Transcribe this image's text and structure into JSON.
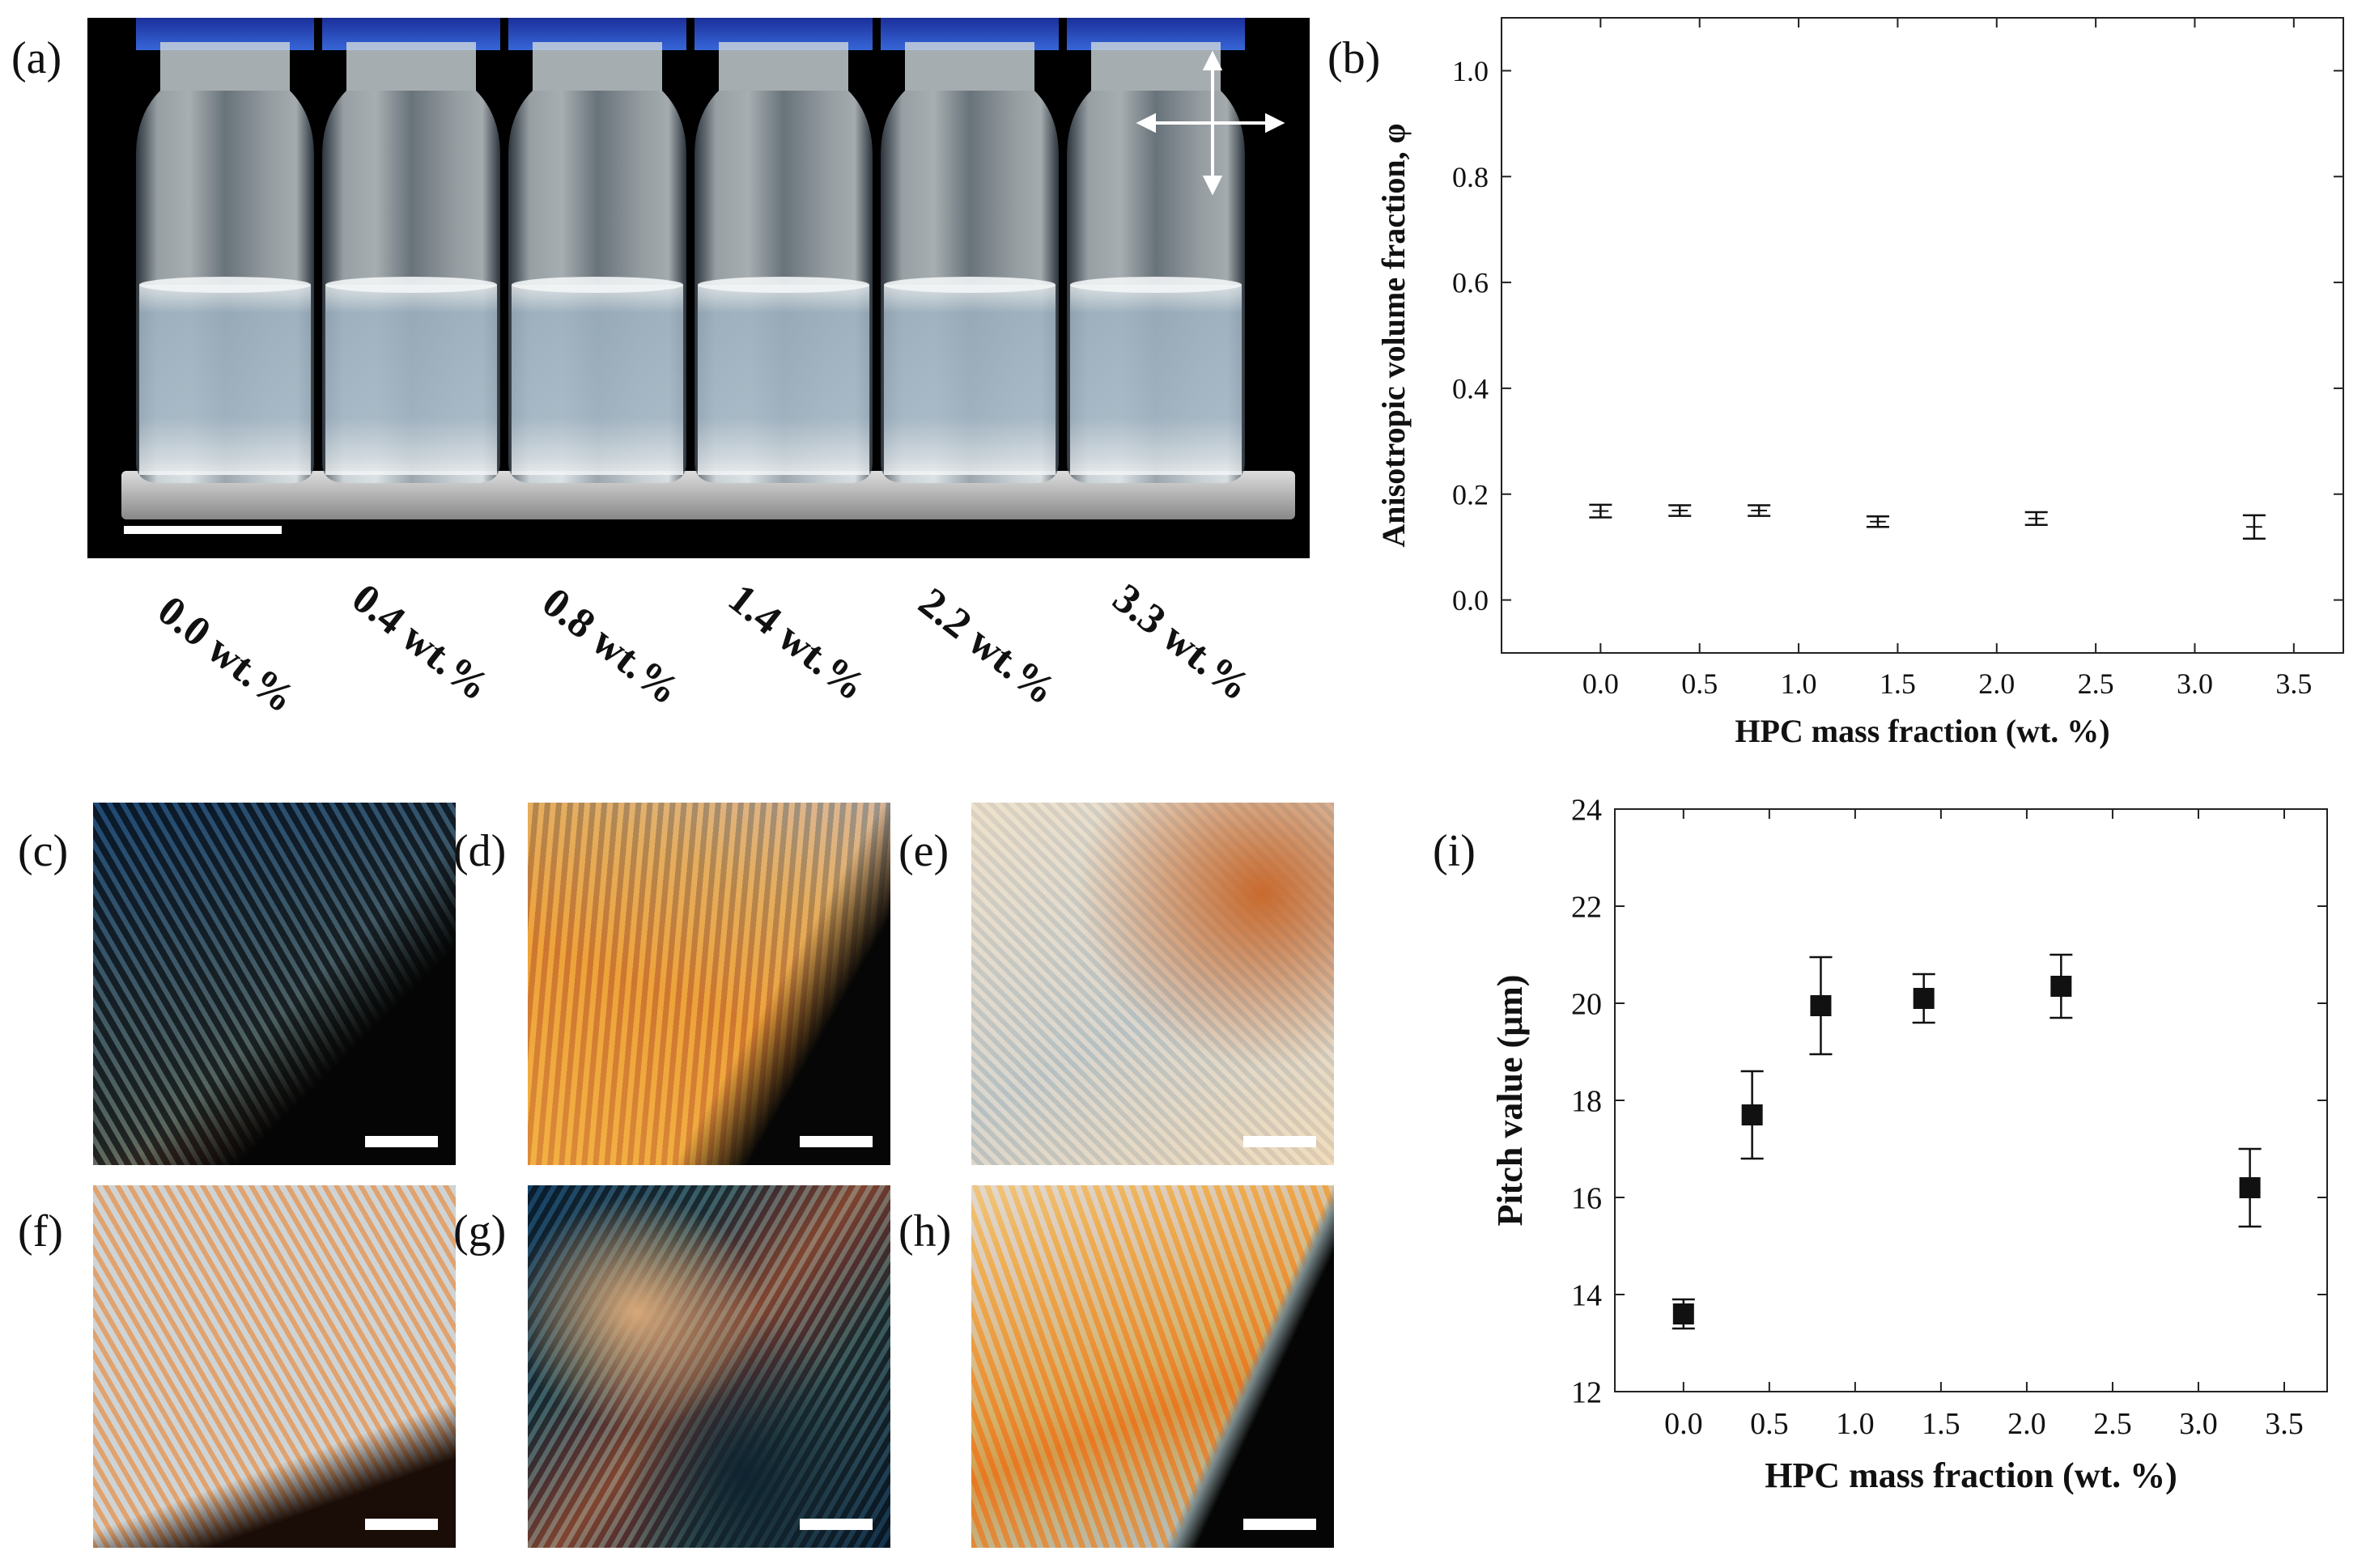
{
  "figure": {
    "panel_letters": [
      "(a)",
      "(b)",
      "(c)",
      "(d)",
      "(e)",
      "(f)",
      "(g)",
      "(h)",
      "(i)"
    ],
    "vial_labels": [
      "0.0 wt.%",
      "0.4 wt.%",
      "0.8 wt.%",
      "1.4 wt.%",
      "2.2 wt.%",
      "3.3 wt.%"
    ]
  },
  "chart_data": [
    {
      "panel": "(b)",
      "type": "scatter",
      "xlabel": "HPC mass fraction (wt. %)",
      "ylabel": "Anisotropic volume fraction, φ",
      "xlim": [
        -0.5,
        3.75
      ],
      "ylim": [
        -0.1,
        1.1
      ],
      "xticks": [
        "0.0",
        "0.5",
        "1.0",
        "1.5",
        "2.0",
        "2.5",
        "3.0",
        "3.5"
      ],
      "yticks": [
        "0.0",
        "0.2",
        "0.4",
        "0.6",
        "0.8",
        "1.0"
      ],
      "x": [
        0.0,
        0.4,
        0.8,
        1.4,
        2.2,
        3.3
      ],
      "y": [
        0.168,
        0.169,
        0.169,
        0.148,
        0.154,
        0.138
      ],
      "error": [
        0.012,
        0.01,
        0.01,
        0.01,
        0.012,
        0.022
      ]
    },
    {
      "panel": "(i)",
      "type": "scatter",
      "xlabel": "HPC mass fraction (wt. %)",
      "ylabel": "Pitch value (μm)",
      "xlim": [
        -0.4,
        3.75
      ],
      "ylim": [
        12,
        24
      ],
      "xticks": [
        "0.0",
        "0.5",
        "1.0",
        "1.5",
        "2.0",
        "2.5",
        "3.0",
        "3.5"
      ],
      "yticks": [
        "12",
        "14",
        "16",
        "18",
        "20",
        "22",
        "24"
      ],
      "x": [
        0.0,
        0.4,
        0.8,
        1.4,
        2.2,
        3.3
      ],
      "y": [
        13.6,
        17.7,
        19.95,
        20.1,
        20.35,
        16.2
      ],
      "error": [
        0.3,
        0.9,
        1.0,
        0.5,
        0.65,
        0.8
      ]
    }
  ]
}
